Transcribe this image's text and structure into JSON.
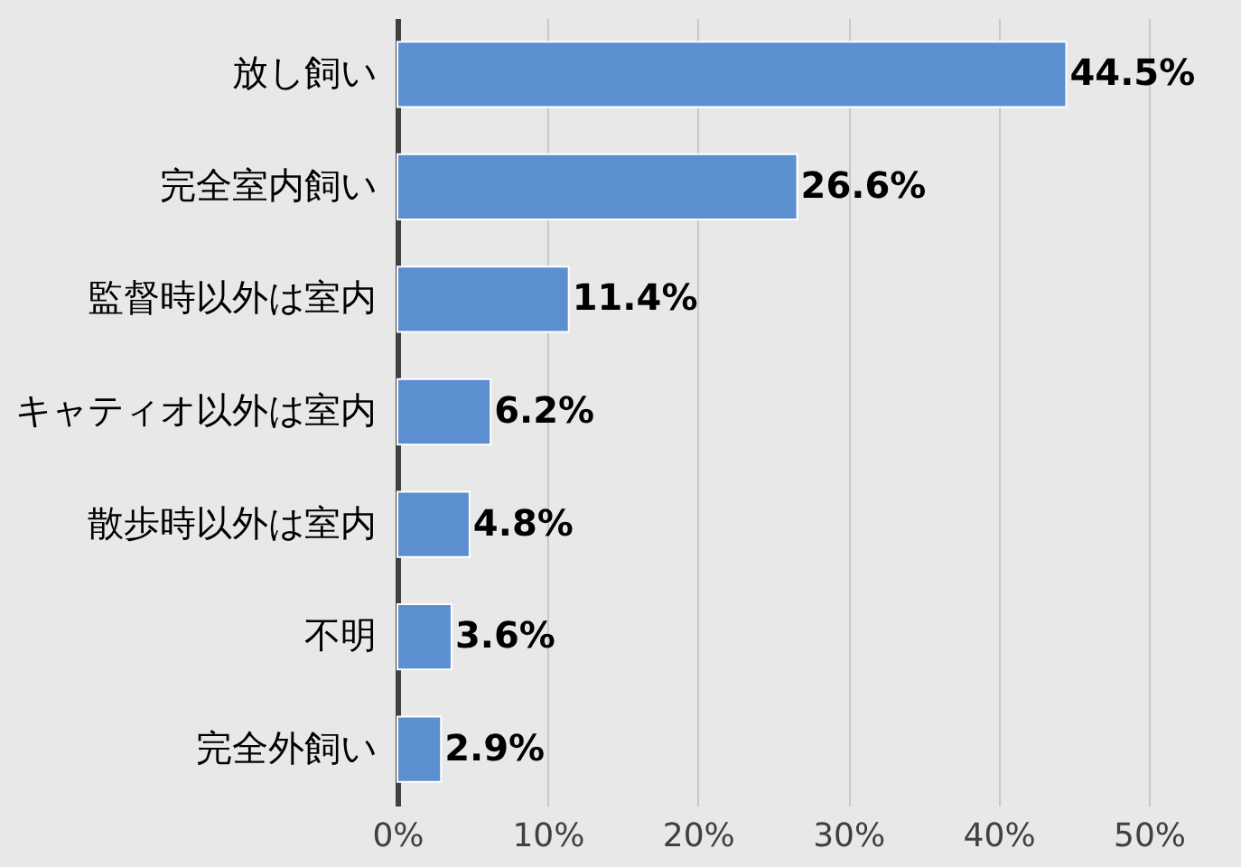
{
  "chart_data": {
    "type": "bar",
    "orientation": "horizontal",
    "categories": [
      "放し飼い",
      "完全室内飼い",
      "監督時以外は室内",
      "キャティオ以外は室内",
      "散歩時以外は室内",
      "不明",
      "完全外飼い"
    ],
    "values": [
      44.5,
      26.6,
      11.4,
      6.2,
      4.8,
      3.6,
      2.9
    ],
    "color": "#5b8fd0",
    "xlim": [
      0,
      50
    ],
    "xticks": [
      {
        "value": 0,
        "label": "0%"
      },
      {
        "value": 10,
        "label": "10%"
      },
      {
        "value": 20,
        "label": "20%"
      },
      {
        "value": 30,
        "label": "30%"
      },
      {
        "value": 40,
        "label": "40%"
      },
      {
        "value": 50,
        "label": "50%"
      }
    ],
    "value_labels": [
      "44.5%",
      "26.6%",
      "11.4%",
      "6.2%",
      "4.8%",
      "3.6%",
      "2.9%"
    ],
    "grid": "x"
  }
}
